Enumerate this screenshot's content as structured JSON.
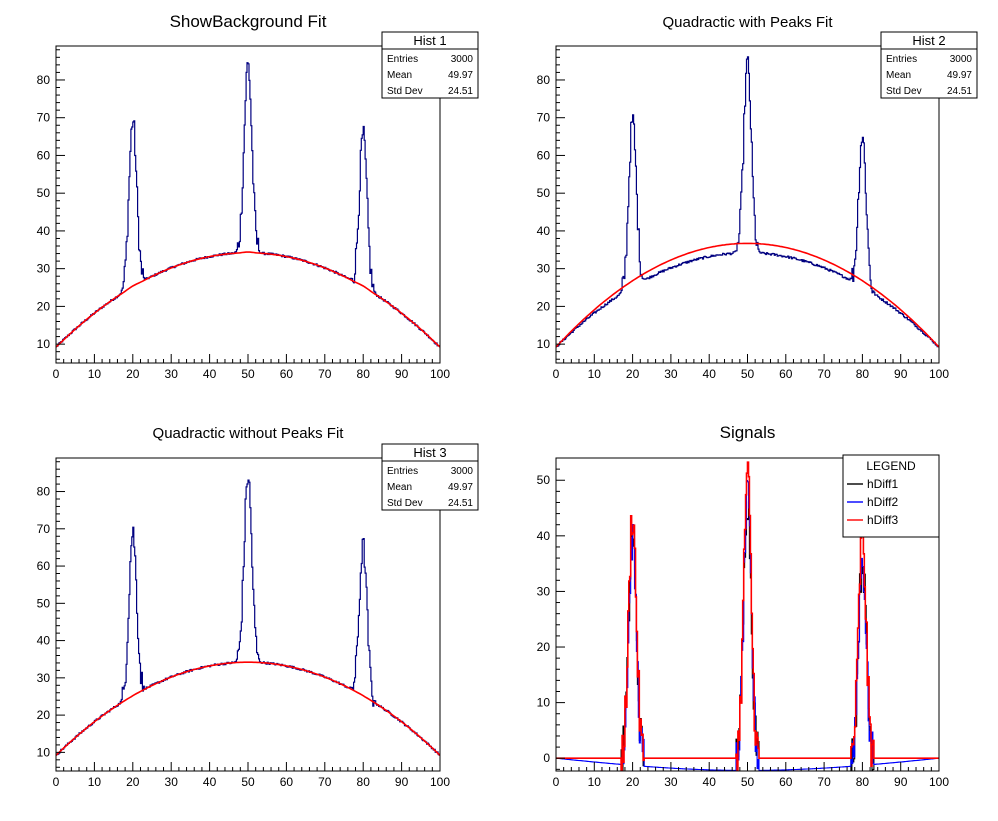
{
  "chart_data": [
    {
      "type": "line",
      "title": "ShowBackground Fit",
      "xlabel": "",
      "ylabel": "",
      "xlim": [
        0,
        100
      ],
      "ylim": [
        5,
        89
      ],
      "x_ticks": [
        0,
        10,
        20,
        30,
        40,
        50,
        60,
        70,
        80,
        90,
        100
      ],
      "y_ticks": [
        10,
        20,
        30,
        40,
        50,
        60,
        70,
        80
      ],
      "stats": {
        "title": "Hist 1",
        "rows": [
          [
            "Entries",
            "3000"
          ],
          [
            "Mean",
            "49.97"
          ],
          [
            "Std Dev",
            "24.51"
          ]
        ]
      },
      "background": {
        "a": 9.2,
        "b": 1.0,
        "c": -0.01
      },
      "series": [
        {
          "role": "hist",
          "color": "#000080",
          "peaks": [
            {
              "x": 20,
              "h": 44
            },
            {
              "x": 50,
              "h": 50
            },
            {
              "x": 80,
              "h": 40
            }
          ]
        },
        {
          "role": "fit",
          "color": "#ff0000",
          "shape": "background-with-peak-notches",
          "a": 9.2,
          "b": 1.0,
          "c": -0.01
        }
      ]
    },
    {
      "type": "line",
      "title": "Quadractic with Peaks Fit",
      "xlabel": "",
      "ylabel": "",
      "xlim": [
        0,
        100
      ],
      "ylim": [
        5,
        89
      ],
      "x_ticks": [
        0,
        10,
        20,
        30,
        40,
        50,
        60,
        70,
        80,
        90,
        100
      ],
      "y_ticks": [
        10,
        20,
        30,
        40,
        50,
        60,
        70,
        80
      ],
      "stats": {
        "title": "Hist 2",
        "rows": [
          [
            "Entries",
            "3000"
          ],
          [
            "Mean",
            "49.97"
          ],
          [
            "Std Dev",
            "24.51"
          ]
        ]
      },
      "background": {
        "a": 9.2,
        "b": 1.0,
        "c": -0.01
      },
      "series": [
        {
          "role": "hist",
          "color": "#000080",
          "peaks": [
            {
              "x": 20,
              "h": 44
            },
            {
              "x": 50,
              "h": 50
            },
            {
              "x": 80,
              "h": 40
            }
          ]
        },
        {
          "role": "fit",
          "color": "#ff0000",
          "shape": "quadratic",
          "a": 9.2,
          "b": 1.1,
          "c": -0.011
        }
      ]
    },
    {
      "type": "line",
      "title": "Quadractic without Peaks Fit",
      "xlabel": "",
      "ylabel": "",
      "xlim": [
        0,
        100
      ],
      "ylim": [
        5,
        89
      ],
      "x_ticks": [
        0,
        10,
        20,
        30,
        40,
        50,
        60,
        70,
        80,
        90,
        100
      ],
      "y_ticks": [
        10,
        20,
        30,
        40,
        50,
        60,
        70,
        80
      ],
      "stats": {
        "title": "Hist 3",
        "rows": [
          [
            "Entries",
            "3000"
          ],
          [
            "Mean",
            "49.97"
          ],
          [
            "Std Dev",
            "24.51"
          ]
        ]
      },
      "background": {
        "a": 9.2,
        "b": 1.0,
        "c": -0.01
      },
      "series": [
        {
          "role": "hist",
          "color": "#000080",
          "peaks": [
            {
              "x": 20,
              "h": 44
            },
            {
              "x": 50,
              "h": 50
            },
            {
              "x": 80,
              "h": 40
            }
          ]
        },
        {
          "role": "fit",
          "color": "#ff0000",
          "shape": "quadratic",
          "a": 9.2,
          "b": 1.0,
          "c": -0.01
        }
      ]
    },
    {
      "type": "line",
      "title": "Signals",
      "xlabel": "",
      "ylabel": "",
      "xlim": [
        0,
        100
      ],
      "ylim": [
        -2.3,
        54
      ],
      "x_ticks": [
        0,
        10,
        20,
        30,
        40,
        50,
        60,
        70,
        80,
        90,
        100
      ],
      "y_ticks": [
        0,
        10,
        20,
        30,
        40,
        50
      ],
      "legend": {
        "title": "LEGEND",
        "placement": "top-right"
      },
      "series": [
        {
          "name": "hDiff1",
          "color": "#000000",
          "peaks": [
            {
              "x": 20,
              "h": 40
            },
            {
              "x": 50,
              "h": 47
            },
            {
              "x": 80,
              "h": 36
            }
          ],
          "baseline": "zero"
        },
        {
          "name": "hDiff2",
          "color": "#0000ff",
          "peaks": [
            {
              "x": 20,
              "h": 40
            },
            {
              "x": 50,
              "h": 47
            },
            {
              "x": 80,
              "h": 36
            }
          ],
          "baseline": "negative-dip",
          "dip_min": -2.2
        },
        {
          "name": "hDiff3",
          "color": "#ff0000",
          "peaks": [
            {
              "x": 20,
              "h": 44
            },
            {
              "x": 50,
              "h": 51
            },
            {
              "x": 80,
              "h": 40
            }
          ],
          "baseline": "zero"
        }
      ]
    }
  ]
}
